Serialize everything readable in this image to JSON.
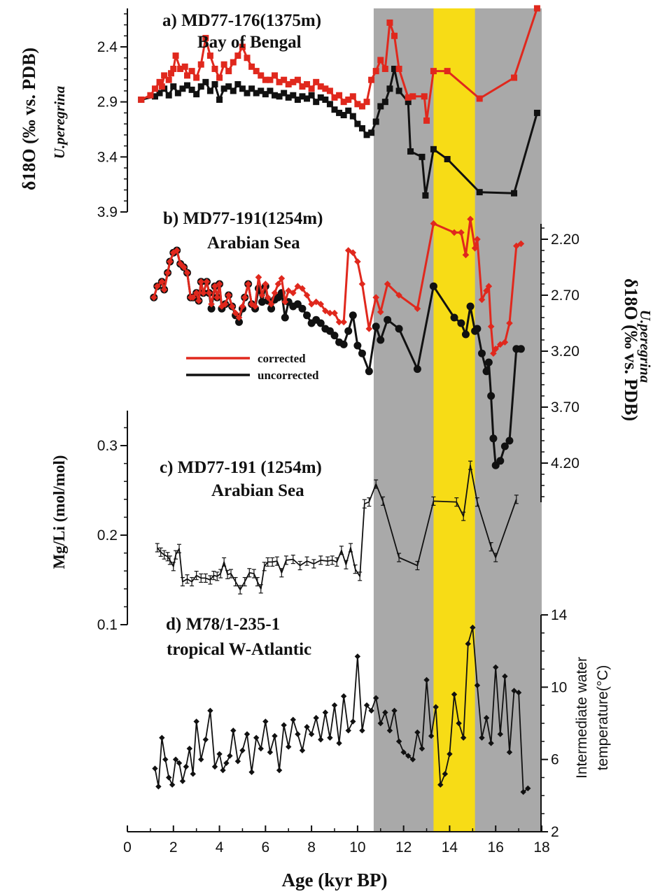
{
  "colors": {
    "gray_band": "#a9a9a9",
    "yellow_band": "#f7dc16",
    "corrected": "#e0281d",
    "uncorrected": "#111111"
  },
  "x_axis": {
    "label": "Age (kyr BP)",
    "range": [
      0,
      18
    ],
    "ticks": [
      "0",
      "2",
      "4",
      "6",
      "8",
      "10",
      "12",
      "14",
      "16",
      "18"
    ]
  },
  "bands": [
    {
      "x0": 10.7,
      "x1": 18.0,
      "color": "gray"
    },
    {
      "x0": 13.3,
      "x1": 15.1,
      "color": "yellow"
    }
  ],
  "legend": {
    "corrected": "corrected",
    "uncorrected": "uncorrected"
  },
  "chart_data": [
    {
      "type": "line",
      "title": "a) MD77-176(1375m)",
      "subtitle": "Bay of Bengal",
      "ylabel": "δ18O (‰ vs. PDB)",
      "ylabel_species": "U.peregrina",
      "ylim": [
        3.9,
        2.05
      ],
      "y_inverted": true,
      "y_ticks": [
        "2.4",
        "2.9",
        "3.4",
        "3.9"
      ],
      "series": [
        {
          "name": "uncorrected",
          "marker": "square",
          "color": "black",
          "x": [
            0.6,
            1.2,
            1.4,
            1.6,
            1.8,
            2.0,
            2.2,
            2.4,
            2.6,
            2.8,
            3.0,
            3.2,
            3.4,
            3.6,
            3.8,
            4.0,
            4.2,
            4.4,
            4.6,
            4.8,
            5.0,
            5.2,
            5.4,
            5.6,
            5.8,
            6.0,
            6.2,
            6.4,
            6.6,
            6.8,
            7.0,
            7.2,
            7.4,
            7.6,
            7.8,
            8.0,
            8.2,
            8.4,
            8.6,
            8.8,
            9.0,
            9.2,
            9.4,
            9.6,
            9.8,
            10.0,
            10.2,
            10.4,
            10.6,
            10.8,
            11.0,
            11.2,
            11.4,
            11.6,
            11.8,
            12.2,
            12.3,
            12.8,
            12.95,
            13.3,
            13.9,
            15.3,
            16.8,
            17.8
          ],
          "y": [
            2.88,
            2.85,
            2.82,
            2.78,
            2.84,
            2.76,
            2.82,
            2.78,
            2.75,
            2.79,
            2.83,
            2.76,
            2.72,
            2.8,
            2.74,
            2.88,
            2.78,
            2.76,
            2.8,
            2.74,
            2.78,
            2.82,
            2.78,
            2.82,
            2.8,
            2.83,
            2.8,
            2.84,
            2.85,
            2.82,
            2.86,
            2.84,
            2.88,
            2.85,
            2.87,
            2.84,
            2.9,
            2.86,
            2.88,
            2.92,
            2.97,
            3.0,
            3.02,
            2.98,
            3.03,
            3.1,
            3.14,
            3.2,
            3.18,
            3.08,
            2.94,
            2.9,
            2.78,
            2.6,
            2.8,
            2.9,
            3.35,
            3.4,
            3.75,
            3.33,
            3.42,
            3.72,
            3.73,
            3.0
          ]
        },
        {
          "name": "corrected",
          "marker": "square",
          "color": "red",
          "x": [
            0.6,
            1.0,
            1.2,
            1.4,
            1.5,
            1.6,
            1.8,
            1.9,
            2.0,
            2.1,
            2.3,
            2.5,
            2.6,
            2.8,
            3.0,
            3.2,
            3.4,
            3.6,
            3.8,
            4.0,
            4.2,
            4.4,
            4.6,
            4.8,
            5.0,
            5.2,
            5.4,
            5.6,
            5.8,
            6.0,
            6.2,
            6.4,
            6.6,
            6.8,
            7.0,
            7.2,
            7.4,
            7.6,
            7.8,
            8.0,
            8.2,
            8.4,
            8.6,
            8.8,
            9.0,
            9.2,
            9.4,
            9.6,
            9.8,
            10.0,
            10.2,
            10.4,
            10.6,
            10.8,
            11.0,
            11.2,
            11.4,
            11.6,
            11.8,
            12.2,
            12.4,
            12.9,
            13.0,
            13.3,
            13.9,
            15.3,
            16.8,
            17.8
          ],
          "y": [
            2.88,
            2.84,
            2.78,
            2.72,
            2.76,
            2.66,
            2.7,
            2.64,
            2.6,
            2.48,
            2.6,
            2.58,
            2.66,
            2.62,
            2.68,
            2.56,
            2.32,
            2.48,
            2.6,
            2.68,
            2.56,
            2.62,
            2.54,
            2.48,
            2.4,
            2.5,
            2.58,
            2.62,
            2.66,
            2.7,
            2.7,
            2.66,
            2.72,
            2.7,
            2.74,
            2.72,
            2.7,
            2.76,
            2.74,
            2.78,
            2.72,
            2.76,
            2.78,
            2.8,
            2.86,
            2.84,
            2.9,
            2.88,
            2.85,
            2.92,
            2.94,
            2.9,
            2.7,
            2.62,
            2.52,
            2.6,
            2.18,
            2.3,
            2.6,
            2.86,
            2.85,
            2.85,
            3.07,
            2.62,
            2.62,
            2.87,
            2.68,
            2.05
          ]
        }
      ]
    },
    {
      "type": "line",
      "title": "b) MD77-191(1254m)",
      "subtitle": "Arabian Sea",
      "ylabel": "δ18O (‰ vs. PDB)",
      "ylabel_species": "U.peregrina",
      "ylim": [
        4.5,
        2.0
      ],
      "y_inverted": true,
      "y_ticks": [
        "2.20",
        "2.70",
        "3.20",
        "3.70",
        "4.20"
      ],
      "series": [
        {
          "name": "uncorrected",
          "marker": "circle",
          "color": "black",
          "x": [
            1.15,
            1.3,
            1.5,
            1.6,
            1.75,
            1.85,
            2.0,
            2.15,
            2.3,
            2.45,
            2.6,
            2.75,
            2.85,
            3.0,
            3.1,
            3.2,
            3.3,
            3.45,
            3.55,
            3.65,
            3.8,
            3.9,
            4.0,
            4.1,
            4.25,
            4.4,
            4.55,
            4.7,
            4.85,
            5.0,
            5.1,
            5.25,
            5.4,
            5.55,
            5.7,
            5.85,
            6.0,
            6.1,
            6.25,
            6.4,
            6.55,
            6.7,
            6.85,
            7.0,
            7.2,
            7.4,
            7.6,
            7.8,
            8.0,
            8.2,
            8.4,
            8.6,
            8.8,
            9.0,
            9.2,
            9.4,
            9.6,
            9.8,
            10.0,
            10.2,
            10.5,
            10.8,
            11.0,
            11.3,
            11.8,
            12.6,
            13.3,
            14.2,
            14.5,
            14.7,
            14.9,
            15.1,
            15.2,
            15.4,
            15.6,
            15.7,
            15.8,
            15.9,
            16.0,
            16.2,
            16.4,
            16.6,
            16.9,
            17.1
          ],
          "y": [
            2.72,
            2.62,
            2.58,
            2.65,
            2.5,
            2.4,
            2.32,
            2.3,
            2.42,
            2.45,
            2.5,
            2.72,
            2.72,
            2.68,
            2.75,
            2.58,
            2.68,
            2.58,
            2.68,
            2.82,
            2.62,
            2.72,
            2.6,
            2.82,
            2.78,
            2.7,
            2.8,
            2.88,
            2.94,
            2.82,
            2.72,
            2.6,
            2.78,
            2.82,
            2.64,
            2.76,
            2.62,
            2.75,
            2.82,
            2.74,
            2.72,
            2.68,
            2.9,
            2.76,
            2.8,
            2.78,
            2.82,
            2.88,
            2.95,
            2.92,
            2.95,
            3.0,
            3.02,
            3.06,
            3.12,
            3.14,
            3.02,
            2.88,
            3.15,
            3.22,
            3.38,
            2.98,
            3.1,
            2.92,
            3.0,
            3.36,
            2.62,
            2.9,
            2.95,
            3.05,
            2.8,
            3.02,
            3.0,
            3.22,
            3.38,
            3.3,
            3.6,
            3.98,
            4.22,
            4.18,
            4.05,
            4.0,
            3.18,
            3.18
          ]
        },
        {
          "name": "corrected",
          "marker": "diamond",
          "color": "red",
          "x": [
            1.15,
            1.3,
            1.5,
            1.6,
            1.75,
            1.85,
            2.0,
            2.15,
            2.3,
            2.45,
            2.6,
            2.75,
            2.85,
            3.0,
            3.1,
            3.2,
            3.3,
            3.45,
            3.55,
            3.65,
            3.8,
            3.9,
            4.0,
            4.1,
            4.25,
            4.4,
            4.55,
            4.7,
            4.85,
            5.0,
            5.1,
            5.25,
            5.4,
            5.55,
            5.7,
            5.85,
            6.0,
            6.1,
            6.25,
            6.4,
            6.55,
            6.7,
            6.85,
            7.0,
            7.2,
            7.4,
            7.6,
            7.8,
            8.0,
            8.2,
            8.4,
            8.6,
            8.8,
            9.0,
            9.2,
            9.4,
            9.6,
            9.8,
            10.0,
            10.2,
            10.5,
            10.8,
            11.0,
            11.3,
            11.8,
            12.6,
            13.3,
            14.2,
            14.5,
            14.7,
            14.9,
            15.1,
            15.2,
            15.4,
            15.6,
            15.7,
            15.8,
            15.9,
            16.0,
            16.2,
            16.4,
            16.6,
            16.9,
            17.1
          ],
          "y": [
            2.72,
            2.62,
            2.58,
            2.65,
            2.5,
            2.4,
            2.32,
            2.3,
            2.42,
            2.45,
            2.5,
            2.72,
            2.72,
            2.68,
            2.75,
            2.58,
            2.68,
            2.58,
            2.68,
            2.78,
            2.62,
            2.72,
            2.6,
            2.8,
            2.78,
            2.7,
            2.8,
            2.86,
            2.9,
            2.8,
            2.72,
            2.6,
            2.78,
            2.8,
            2.54,
            2.7,
            2.6,
            2.72,
            2.78,
            2.68,
            2.6,
            2.55,
            2.76,
            2.66,
            2.68,
            2.62,
            2.64,
            2.7,
            2.78,
            2.76,
            2.78,
            2.84,
            2.86,
            2.86,
            2.94,
            2.94,
            2.3,
            2.32,
            2.4,
            2.6,
            3.0,
            2.72,
            2.85,
            2.6,
            2.7,
            2.82,
            2.06,
            2.14,
            2.14,
            2.34,
            2.02,
            2.28,
            2.2,
            2.74,
            2.66,
            2.62,
            2.98,
            3.22,
            3.18,
            3.14,
            3.12,
            2.95,
            2.26,
            2.24
          ]
        }
      ]
    },
    {
      "type": "line",
      "title": "c) MD77-191 (1254m)",
      "subtitle": "Arabian Sea",
      "ylabel": "Mg/Li (mol/mol)",
      "ylim": [
        0.1,
        0.34
      ],
      "y_ticks": [
        "0.1",
        "0.2",
        "0.3"
      ],
      "series": [
        {
          "name": "Mg/Li",
          "marker": "errorbar",
          "color": "black",
          "x": [
            1.3,
            1.45,
            1.6,
            1.75,
            1.85,
            2.0,
            2.1,
            2.25,
            2.4,
            2.6,
            2.8,
            3.0,
            3.2,
            3.4,
            3.6,
            3.75,
            3.9,
            4.05,
            4.2,
            4.35,
            4.5,
            4.7,
            4.9,
            5.1,
            5.3,
            5.5,
            5.65,
            5.8,
            5.95,
            6.1,
            6.3,
            6.5,
            6.7,
            6.9,
            7.2,
            7.5,
            7.8,
            8.1,
            8.4,
            8.7,
            8.9,
            9.1,
            9.3,
            9.5,
            9.7,
            9.9,
            10.1,
            10.3,
            10.5,
            10.8,
            11.1,
            11.8,
            12.6,
            13.3,
            14.3,
            14.6,
            14.9,
            15.2,
            15.8,
            16.0,
            16.9
          ],
          "y": [
            0.186,
            0.181,
            0.178,
            0.176,
            0.172,
            0.165,
            0.178,
            0.185,
            0.148,
            0.151,
            0.148,
            0.155,
            0.152,
            0.152,
            0.15,
            0.155,
            0.154,
            0.157,
            0.17,
            0.156,
            0.157,
            0.148,
            0.139,
            0.148,
            0.158,
            0.157,
            0.148,
            0.14,
            0.165,
            0.17,
            0.17,
            0.171,
            0.158,
            0.172,
            0.173,
            0.166,
            0.171,
            0.168,
            0.172,
            0.171,
            0.172,
            0.17,
            0.183,
            0.167,
            0.186,
            0.162,
            0.154,
            0.235,
            0.237,
            0.257,
            0.238,
            0.175,
            0.166,
            0.238,
            0.237,
            0.221,
            0.278,
            0.237,
            0.187,
            0.175,
            0.24
          ]
        }
      ]
    },
    {
      "type": "line",
      "title": "d) M78/1-235-1",
      "subtitle": "tropical W-Atlantic",
      "ylabel": "Intermediate water",
      "ylabel2": "temperature(°C)",
      "ylim": [
        2,
        14
      ],
      "y_ticks": [
        "2",
        "6",
        "10",
        "14"
      ],
      "series": [
        {
          "name": "Intermediate water temperature",
          "marker": "diamond",
          "color": "black",
          "x": [
            1.2,
            1.35,
            1.5,
            1.65,
            1.8,
            1.95,
            2.1,
            2.25,
            2.4,
            2.55,
            2.7,
            2.85,
            3.0,
            3.2,
            3.4,
            3.6,
            3.8,
            4.0,
            4.15,
            4.3,
            4.45,
            4.6,
            4.8,
            5.0,
            5.2,
            5.4,
            5.6,
            5.8,
            6.0,
            6.2,
            6.4,
            6.6,
            6.8,
            7.0,
            7.2,
            7.4,
            7.6,
            7.8,
            8.0,
            8.2,
            8.4,
            8.6,
            8.8,
            9.0,
            9.2,
            9.4,
            9.6,
            9.8,
            10.0,
            10.2,
            10.4,
            10.6,
            10.8,
            11.0,
            11.2,
            11.4,
            11.6,
            11.8,
            12.0,
            12.2,
            12.4,
            12.6,
            12.8,
            13.0,
            13.2,
            13.4,
            13.6,
            13.8,
            14.0,
            14.2,
            14.4,
            14.6,
            14.8,
            15.0,
            15.2,
            15.4,
            15.6,
            15.8,
            16.0,
            16.2,
            16.4,
            16.6,
            16.8,
            17.0,
            17.2,
            17.4
          ],
          "y": [
            5.5,
            4.5,
            7.2,
            6.0,
            5.0,
            4.6,
            6.0,
            5.8,
            4.8,
            5.6,
            6.6,
            5.2,
            8.1,
            6.0,
            7.1,
            8.7,
            5.6,
            6.3,
            5.4,
            5.8,
            6.2,
            7.6,
            5.9,
            6.5,
            7.4,
            5.3,
            7.2,
            6.6,
            8.1,
            6.4,
            7.3,
            5.4,
            7.9,
            6.7,
            8.2,
            7.4,
            6.5,
            7.8,
            7.4,
            8.3,
            7.1,
            8.6,
            7.2,
            9.0,
            6.9,
            9.5,
            7.6,
            8.1,
            11.7,
            7.6,
            9.0,
            8.7,
            9.4,
            8.0,
            8.6,
            7.6,
            8.7,
            7.0,
            6.4,
            6.2,
            6.0,
            7.5,
            6.6,
            10.4,
            7.3,
            8.9,
            4.6,
            5.2,
            6.3,
            9.6,
            8.0,
            7.2,
            12.4,
            13.3,
            10.1,
            7.2,
            8.3,
            6.9,
            11.1,
            7.4,
            10.6,
            6.4,
            9.8,
            9.7,
            4.2,
            4.4
          ]
        }
      ]
    }
  ]
}
